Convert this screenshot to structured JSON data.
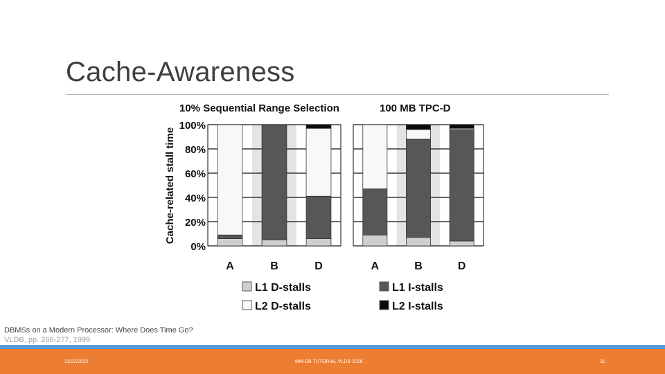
{
  "slide": {
    "title": "Cache-Awareness",
    "citation_line1": "DBMSs on a Modern Processor: Where Does Time Go?",
    "citation_line2": "VLDB, pp. 266-277, 1999"
  },
  "footer": {
    "date": "11/22/2020",
    "center": "MM-DB TUTORIAL VLDB 2016",
    "page": "31"
  },
  "chart_data": {
    "type": "bar",
    "stacked": true,
    "percent": true,
    "ylabel": "Cache-related stall time",
    "ylim": [
      0,
      100
    ],
    "yticks": [
      "0%",
      "20%",
      "40%",
      "60%",
      "80%",
      "100%"
    ],
    "grid": true,
    "legend_position": "bottom",
    "panels": [
      {
        "title": "10% Sequential Range Selection",
        "categories": [
          "A",
          "B",
          "D"
        ],
        "series": [
          {
            "name": "L1 D-stalls",
            "values": [
              6,
              5,
              6
            ]
          },
          {
            "name": "L2 D-stalls",
            "values": [
              91,
              0,
              56
            ]
          },
          {
            "name": "L1 I-stalls",
            "values": [
              3,
              95,
              35
            ]
          },
          {
            "name": "L2 I-stalls",
            "values": [
              0,
              0,
              3
            ]
          }
        ]
      },
      {
        "title": "100 MB TPC-D",
        "categories": [
          "A",
          "B",
          "D"
        ],
        "series": [
          {
            "name": "L1 D-stalls",
            "values": [
              9,
              7,
              4
            ]
          },
          {
            "name": "L2 D-stalls",
            "values": [
              53,
              8,
              1
            ]
          },
          {
            "name": "L1 I-stalls",
            "values": [
              38,
              81,
              92
            ]
          },
          {
            "name": "L2 I-stalls",
            "values": [
              0,
              4,
              3
            ]
          }
        ]
      }
    ],
    "series_colors": {
      "L1 D-stalls": "#cfcfcf",
      "L2 D-stalls": "#f8f8f8",
      "L1 I-stalls": "#575757",
      "L2 I-stalls": "#0a0a0a"
    },
    "legend_order": [
      "L1 D-stalls",
      "L1 I-stalls",
      "L2 D-stalls",
      "L2 I-stalls"
    ]
  }
}
